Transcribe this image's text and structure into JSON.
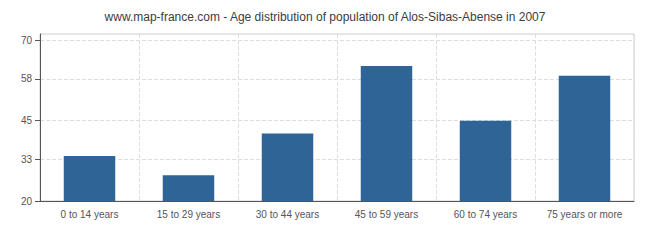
{
  "chart_data": {
    "type": "bar",
    "title": "www.map-france.com - Age distribution of population of Alos-Sibas-Abense in 2007",
    "categories": [
      "0 to 14 years",
      "15 to 29 years",
      "30 to 44 years",
      "45 to 59 years",
      "60 to 74 years",
      "75 years or more"
    ],
    "values": [
      34,
      28,
      41,
      62,
      45,
      59
    ],
    "color": "#2e6496",
    "ylim": [
      20,
      72
    ],
    "yticks": [
      20,
      33,
      45,
      58,
      70
    ],
    "grid": true
  }
}
